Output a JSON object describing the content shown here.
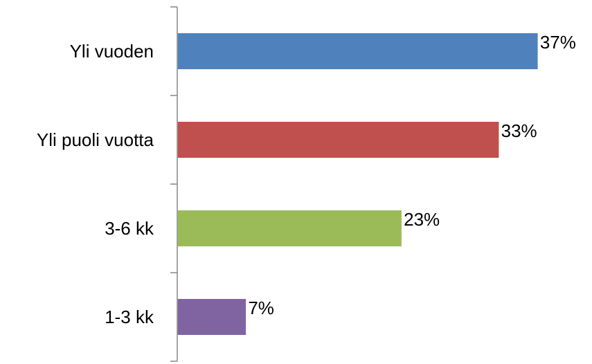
{
  "chart_data": {
    "type": "bar",
    "orientation": "horizontal",
    "categories": [
      "Yli vuoden",
      "Yli puoli vuotta",
      "3-6 kk",
      "1-3 kk"
    ],
    "values": [
      37,
      33,
      23,
      7
    ],
    "value_labels": [
      "37%",
      "33%",
      "23%",
      "7%"
    ],
    "unit": "%",
    "xlim": [
      0,
      40
    ],
    "colors": [
      "#4f81bd",
      "#c0504d",
      "#9bbb59",
      "#8064a2"
    ],
    "grid": false,
    "legend": "none"
  }
}
